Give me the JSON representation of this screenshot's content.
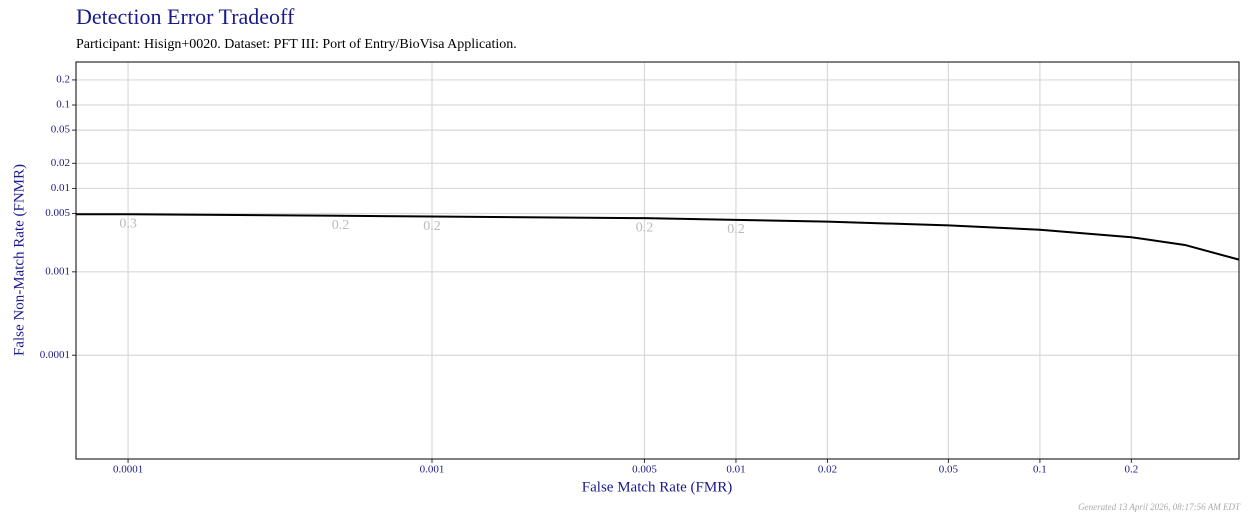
{
  "chart_data": {
    "type": "line",
    "title": "Detection Error Tradeoff",
    "subtitle": "Participant: Hisign+0020. Dataset: PFT III: Port of Entry/BioVisa Application.",
    "x_label": "False Match Rate (FMR)",
    "y_label": "False Non-Match Rate (FNMR)",
    "footer": "Generated 13 April 2026, 08:17:56 AM EDT",
    "log_x": true,
    "log_y": true,
    "grid": true,
    "xlim": [
      6.74e-05,
      0.452
    ],
    "ylim": [
      5.7e-06,
      0.328
    ],
    "xticks": [
      0.0001,
      0.001,
      0.005,
      0.01,
      0.02,
      0.05,
      0.1,
      0.2
    ],
    "yticks": [
      0.0001,
      0.001,
      0.005,
      0.01,
      0.02,
      0.05,
      0.1,
      0.2
    ],
    "series": [
      {
        "color": "#000000",
        "x": [
          6.74e-05,
          0.0001,
          0.0005,
          0.001,
          0.005,
          0.01,
          0.02,
          0.05,
          0.1,
          0.2,
          0.3,
          0.452
        ],
        "values": [
          0.0049,
          0.0049,
          0.0047,
          0.0046,
          0.0044,
          0.0042,
          0.004,
          0.0036,
          0.0032,
          0.0026,
          0.0021,
          0.0014
        ]
      }
    ],
    "threshold_labels": [
      {
        "x": 0.0001,
        "y": 0.0049,
        "label": "0.3"
      },
      {
        "x": 0.0005,
        "y": 0.0047,
        "label": "0.2"
      },
      {
        "x": 0.001,
        "y": 0.0046,
        "label": "0.2"
      },
      {
        "x": 0.005,
        "y": 0.0044,
        "label": "0.2"
      },
      {
        "x": 0.01,
        "y": 0.0042,
        "label": "0.2"
      }
    ]
  }
}
